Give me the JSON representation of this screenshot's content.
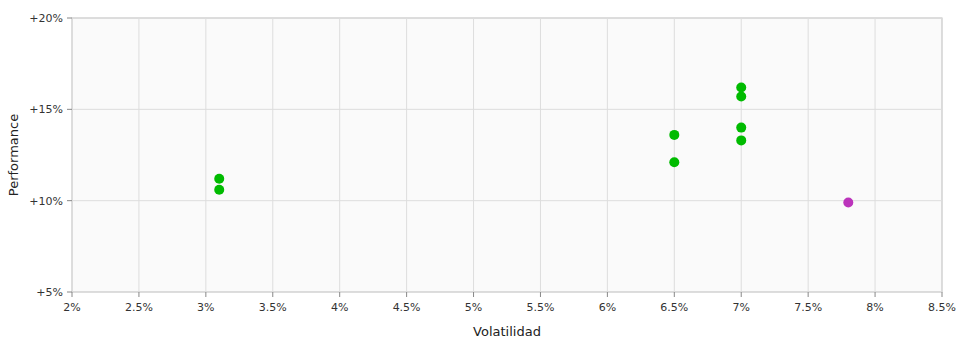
{
  "chart_data": {
    "type": "scatter",
    "xlabel": "Volatilidad",
    "ylabel": "Performance",
    "xlim": [
      0.02,
      0.085
    ],
    "ylim": [
      0.05,
      0.2
    ],
    "xticks": [
      {
        "value": 0.02,
        "label": "2%"
      },
      {
        "value": 0.025,
        "label": "2.5%"
      },
      {
        "value": 0.03,
        "label": "3%"
      },
      {
        "value": 0.035,
        "label": "3.5%"
      },
      {
        "value": 0.04,
        "label": "4%"
      },
      {
        "value": 0.045,
        "label": "4.5%"
      },
      {
        "value": 0.05,
        "label": "5%"
      },
      {
        "value": 0.055,
        "label": "5.5%"
      },
      {
        "value": 0.06,
        "label": "6%"
      },
      {
        "value": 0.065,
        "label": "6.5%"
      },
      {
        "value": 0.07,
        "label": "7%"
      },
      {
        "value": 0.075,
        "label": "7.5%"
      },
      {
        "value": 0.08,
        "label": "8%"
      },
      {
        "value": 0.085,
        "label": "8.5%"
      }
    ],
    "yticks": [
      {
        "value": 0.05,
        "label": "+5%"
      },
      {
        "value": 0.1,
        "label": "+10%"
      },
      {
        "value": 0.15,
        "label": "+15%"
      },
      {
        "value": 0.2,
        "label": "+20%"
      }
    ],
    "grid": true,
    "series": [
      {
        "color": "#00bb00",
        "x": [
          0.031,
          0.031,
          0.065,
          0.065,
          0.07,
          0.07,
          0.07,
          0.07
        ],
        "values": [
          0.112,
          0.106,
          0.136,
          0.121,
          0.14,
          0.133,
          0.162,
          0.157
        ]
      },
      {
        "color": "#bb33bb",
        "x": [
          0.078
        ],
        "values": [
          0.099
        ]
      }
    ]
  }
}
